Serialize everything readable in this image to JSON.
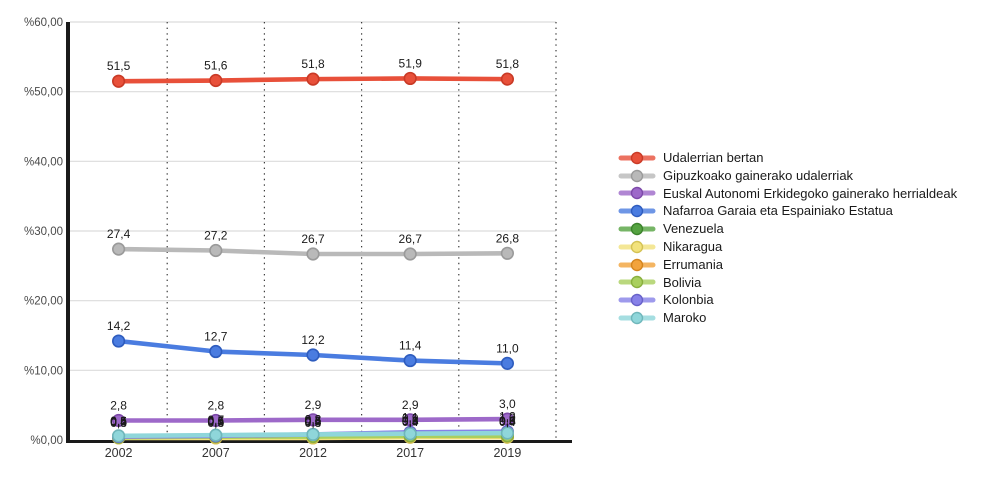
{
  "chart_data": {
    "type": "line",
    "title": "",
    "xlabel": "",
    "ylabel": "",
    "x_categories": [
      "2002",
      "2007",
      "2012",
      "2017",
      "2019"
    ],
    "y_tick_labels": [
      "%60,00",
      "%50,00",
      "%40,00",
      "%30,00",
      "%20,00",
      "%10,00",
      "%0,00"
    ],
    "y_tick_values": [
      60,
      50,
      40,
      30,
      20,
      10,
      0
    ],
    "ylim": [
      0,
      60
    ],
    "grid": {
      "horizontal": true,
      "vertical": "dotted-between-categories"
    },
    "legend_position": "right",
    "decimal_separator": ",",
    "axis_color": "#1a1a1a",
    "gridline_color": "#dcdcdc",
    "separator_color": "#3c3c3c",
    "series": [
      {
        "name": "Udalerrian bertan",
        "color": "#e8503a",
        "stroke": "#c93a26",
        "values": [
          51.5,
          51.6,
          51.8,
          51.9,
          51.8
        ],
        "labels": [
          "51,5",
          "51,6",
          "51,8",
          "51,9",
          "51,8"
        ]
      },
      {
        "name": "Gipuzkoako gainerako udalerriak",
        "color": "#b9b9b9",
        "stroke": "#9a9a9a",
        "values": [
          27.4,
          27.2,
          26.7,
          26.7,
          26.8
        ],
        "labels": [
          "27,4",
          "27,2",
          "26,7",
          "26,7",
          "26,8"
        ]
      },
      {
        "name": "Euskal Autonomi Erkidegoko gainerako herrialdeak",
        "color": "#9d69c9",
        "stroke": "#7d49a9",
        "values": [
          2.8,
          2.8,
          2.9,
          2.9,
          3.0
        ],
        "labels": [
          "2,8",
          "2,8",
          "2,9",
          "2,9",
          "3,0"
        ]
      },
      {
        "name": "Nafarroa Garaia eta Espainiako Estatua",
        "color": "#4a7ce0",
        "stroke": "#2e5cbe",
        "values": [
          14.2,
          12.7,
          12.2,
          11.4,
          11.0
        ],
        "labels": [
          "14,2",
          "12,7",
          "12,2",
          "11,4",
          "11,0"
        ]
      },
      {
        "name": "Venezuela",
        "color": "#55a341",
        "stroke": "#3c822c",
        "values": [
          0.4,
          0.4,
          0.4,
          0.5,
          0.5
        ],
        "labels": [
          "0,4",
          "0,4",
          "0,4",
          "0,5",
          "0,5"
        ]
      },
      {
        "name": "Nikaragua",
        "color": "#f2e27c",
        "stroke": "#d4c254",
        "values": [
          0.3,
          0.3,
          0.3,
          0.4,
          0.4
        ],
        "labels": [
          "0,3",
          "0,3",
          "0,3",
          "0,4",
          "0,4"
        ]
      },
      {
        "name": "Errumania",
        "color": "#f2a33c",
        "stroke": "#d4851e",
        "values": [
          0.5,
          0.5,
          0.6,
          0.6,
          0.6
        ],
        "labels": [
          "0,5",
          "0,5",
          "0,6",
          "0,6",
          "0,6"
        ]
      },
      {
        "name": "Bolivia",
        "color": "#a9cf5e",
        "stroke": "#89af3e",
        "values": [
          0.4,
          0.5,
          0.5,
          0.6,
          0.6
        ],
        "labels": [
          "0,4",
          "0,5",
          "0,5",
          "0,6",
          "0,6"
        ]
      },
      {
        "name": "Kolonbia",
        "color": "#8781e8",
        "stroke": "#6761c8",
        "values": [
          0.5,
          0.6,
          0.8,
          1.1,
          1.2
        ],
        "labels": [
          "0,5",
          "0,6",
          "0,8",
          "1,1",
          "1,2"
        ]
      },
      {
        "name": "Maroko",
        "color": "#8fd6da",
        "stroke": "#6fb6ba",
        "values": [
          0.6,
          0.7,
          0.8,
          0.9,
          1.0
        ],
        "labels": [
          "0,6",
          "0,7",
          "0,8",
          "0,9",
          "1,0"
        ]
      }
    ]
  }
}
